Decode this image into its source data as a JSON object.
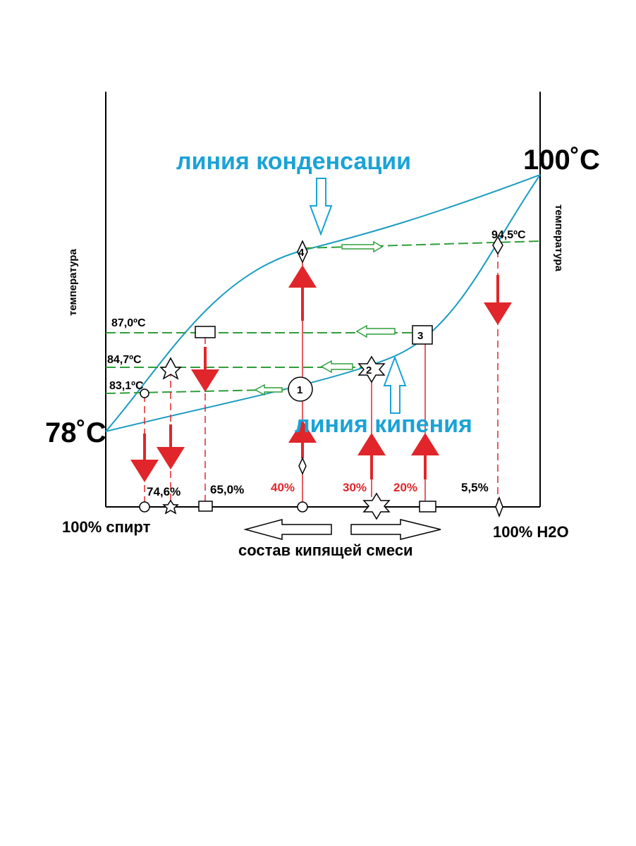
{
  "labels": {
    "temp_low": "78˚C",
    "temp_high": "100˚C",
    "condensation_line": "линия конденсации",
    "boiling_line": "линия кипения",
    "y_axis_left": "температура",
    "y_axis_right": "температура",
    "x_left": "100% спирт",
    "x_right": "100% H2O",
    "x_axis": "состав кипящей смеси"
  },
  "temperatures": {
    "t945": "94,5ºC",
    "t870": "87,0ºC",
    "t847": "84,7ºC",
    "t831": "83,1ºC"
  },
  "compositions": {
    "c746": "74,6%",
    "c650": "65,0%",
    "c40": "40%",
    "c30": "30%",
    "c20": "20%",
    "c55": "5,5%"
  },
  "markers": {
    "m1": "1",
    "m2": "2",
    "m3": "3",
    "m4": "4"
  },
  "colors": {
    "curve": "#1a9cc0",
    "tie_line": "#2e9e3a",
    "vertical": "#e0262a",
    "axis": "#000000",
    "arrow_blue": "#1aa3d6"
  }
}
